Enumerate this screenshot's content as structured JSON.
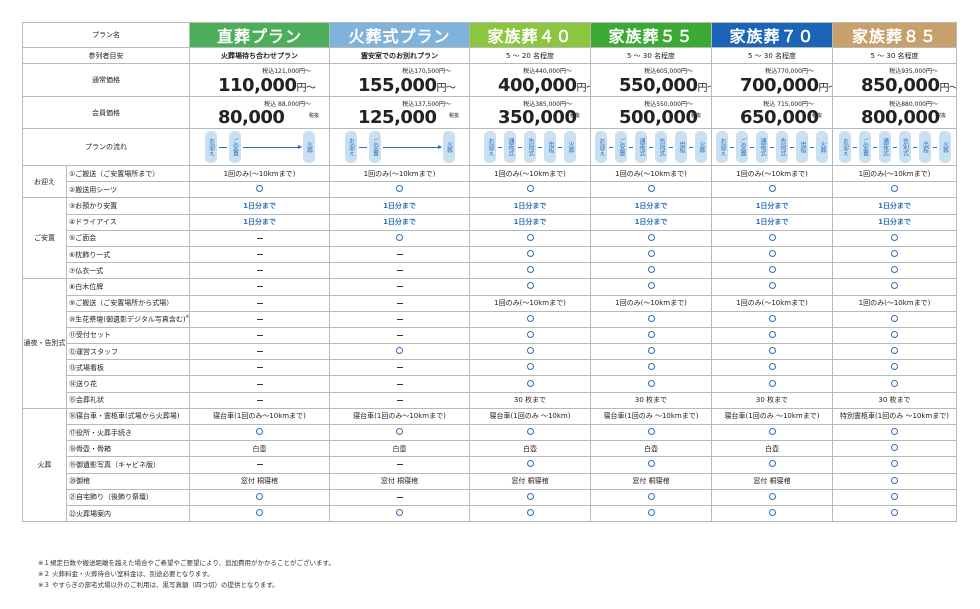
{
  "header": {
    "row_label": "プラン名"
  },
  "plans": [
    {
      "name": "直葬プラン",
      "color": "#4cae5b",
      "attendees": "火葬場待ち合わせプラン",
      "attendees_bold": true,
      "regular": {
        "small": "税込121,000円～",
        "main": "110,000",
        "yen": "円～"
      },
      "member": {
        "small": "税込 88,000円～",
        "main": "80,000",
        "tax": "税抜"
      },
      "flow": [
        "お迎え",
        "ご安置",
        "火葬"
      ]
    },
    {
      "name": "火葬式プラン",
      "color": "#7fb3dc",
      "attendees": "霊安室でのお別れプラン",
      "attendees_bold": true,
      "regular": {
        "small": "税込170,500円～",
        "main": "155,000",
        "yen": "円～"
      },
      "member": {
        "small": "税込137,500円～",
        "main": "125,000",
        "tax": "税抜"
      },
      "flow": [
        "お迎え",
        "ご安置",
        "火葬"
      ]
    },
    {
      "name": "家族葬４０",
      "color": "#8cc63f",
      "attendees": "5 ～ 20 名程度",
      "attendees_bold": false,
      "regular": {
        "small": "税込440,000円～",
        "main": "400,000",
        "yen": "円～"
      },
      "member": {
        "small": "税込385,000円～",
        "main": "350,000",
        "tax": "税抜"
      },
      "flow": [
        "お迎え",
        "通夜式",
        "告別式",
        "出棺",
        "火葬"
      ]
    },
    {
      "name": "家族葬５５",
      "color": "#3aaa35",
      "attendees": "5 ～ 30 名程度",
      "attendees_bold": false,
      "regular": {
        "small": "税込605,000円～",
        "main": "550,000",
        "yen": "円～"
      },
      "member": {
        "small": "税込550,000円～",
        "main": "500,000",
        "tax": "税抜"
      },
      "flow": [
        "お迎え",
        "ご安置",
        "通夜式",
        "告別式",
        "出棺",
        "火葬"
      ]
    },
    {
      "name": "家族葬７０",
      "color": "#1c64b8",
      "attendees": "5 ～ 30 名程度",
      "attendees_bold": false,
      "regular": {
        "small": "税込770,000円～",
        "main": "700,000",
        "yen": "円～"
      },
      "member": {
        "small": "税込 715,000円～",
        "main": "650,000",
        "tax": "税抜"
      },
      "flow": [
        "お迎え",
        "ご安置",
        "通夜式",
        "告別式",
        "出棺",
        "火葬"
      ]
    },
    {
      "name": "家族葬８５",
      "color": "#c8a06c",
      "attendees": "5 ～ 30 名程度",
      "attendees_bold": false,
      "regular": {
        "small": "税込935,000円～",
        "main": "850,000",
        "yen": "円～"
      },
      "member": {
        "small": "税込880,000円～",
        "main": "800,000",
        "tax": "税抜"
      },
      "flow": [
        "お迎え",
        "ご安置",
        "通夜式",
        "告別式",
        "出棺",
        "火葬"
      ]
    }
  ],
  "row_labels": {
    "attendees": "参列者目安",
    "regular": "通常価格",
    "member": "会員価格",
    "flow": "プランの流れ"
  },
  "sections": [
    {
      "category": "お迎え",
      "rows": [
        {
          "item": "①ご搬送（ご安置場所まで）",
          "values": [
            "1回のみ(～10kmまで)",
            "1回のみ(～10kmまで)",
            "1回のみ(～10kmまで)",
            "1回のみ(～10kmまで)",
            "1回のみ(～10kmまで)",
            "1回のみ(～10kmまで)"
          ]
        },
        {
          "item": "②搬送用シーツ",
          "values": [
            "○",
            "○",
            "○",
            "○",
            "○",
            "○"
          ]
        }
      ]
    },
    {
      "category": "ご安置",
      "rows": [
        {
          "item": "③お預かり安置",
          "values": [
            "1日分まで",
            "1日分まで",
            "1日分まで",
            "1日分まで",
            "1日分まで",
            "1日分まで"
          ]
        },
        {
          "item": "④ドライアイス",
          "values": [
            "1日分まで",
            "1日分まで",
            "1日分まで",
            "1日分まで",
            "1日分まで",
            "1日分まで"
          ]
        },
        {
          "item": "⑤ご面会",
          "values": [
            "－",
            "○",
            "○",
            "○",
            "○",
            "○"
          ]
        },
        {
          "item": "⑥枕飾り一式",
          "values": [
            "－",
            "－",
            "○",
            "○",
            "○",
            "○"
          ]
        },
        {
          "item": "⑦仏衣一式",
          "values": [
            "－",
            "－",
            "○",
            "○",
            "○",
            "○"
          ]
        }
      ]
    },
    {
      "category": "通夜・告別式",
      "rows": [
        {
          "item": "⑧白木位牌",
          "values": [
            "－",
            "－",
            "○",
            "○",
            "○",
            "○"
          ]
        },
        {
          "item": "⑨ご搬送（ご安置場所から式場）",
          "values": [
            "－",
            "－",
            "1回のみ(～10kmまで)",
            "1回のみ(～10kmまで)",
            "1回のみ(～10kmまで)",
            "1回のみ(～10kmまで)"
          ]
        },
        {
          "item": "⑩生花祭壇(御遺影デジタル写真含む)",
          "note": "※3",
          "values": [
            "－",
            "－",
            "○",
            "○",
            "○",
            "○"
          ]
        },
        {
          "item": "⑪受付セット",
          "values": [
            "－",
            "－",
            "○",
            "○",
            "○",
            "○"
          ]
        },
        {
          "item": "⑫運営スタッフ",
          "values": [
            "－",
            "○",
            "○",
            "○",
            "○",
            "○"
          ]
        },
        {
          "item": "⑬式場看板",
          "values": [
            "－",
            "－",
            "○",
            "○",
            "○",
            "○"
          ]
        },
        {
          "item": "⑭送り花",
          "values": [
            "－",
            "－",
            "○",
            "○",
            "○",
            "○"
          ]
        },
        {
          "item": "⑮会葬礼状",
          "values": [
            "－",
            "－",
            "30 枚まで",
            "30 枚まで",
            "30 枚まで",
            "30 枚まで"
          ]
        }
      ]
    },
    {
      "category": "火葬",
      "rows": [
        {
          "item": "⑯寝台車・霊柩車(式場から火葬場)",
          "values": [
            "寝台車(1回のみ～10kmまで)",
            "寝台車(1回のみ～10kmまで)",
            "寝台車(1回のみ ～10km)",
            "寝台車(1回のみ ～10kmまで)",
            "寝台車(1回のみ ～10kmまで)",
            "特別霊柩車(1回のみ ～10kmまで)"
          ]
        },
        {
          "item": "⑰役所・火葬手続き",
          "values": [
            "○",
            "○",
            "○",
            "○",
            "○",
            "○"
          ]
        },
        {
          "item": "⑱骨壺・骨箱",
          "values": [
            "白壺",
            "白壺",
            "白壺",
            "白壺",
            "白壺",
            "○"
          ]
        },
        {
          "item": "⑲御遺影写真（キャビネ版）",
          "values": [
            "－",
            "－",
            "○",
            "○",
            "○",
            "○"
          ]
        },
        {
          "item": "⑳御棺",
          "values": [
            "窓付 桐寝棺",
            "窓付 桐寝棺",
            "窓付 桐寝棺",
            "窓付 桐寝棺",
            "窓付 桐寝棺",
            "○"
          ]
        },
        {
          "item": "㉑自宅飾り（後飾り祭壇）",
          "values": [
            "○",
            "－",
            "○",
            "○",
            "○",
            "○"
          ]
        },
        {
          "item": "㉒火葬場案内",
          "values": [
            "○",
            "○",
            "○",
            "○",
            "○",
            "○"
          ]
        }
      ]
    }
  ],
  "notes": [
    "※１規定日数や搬送距離を越えた場合やご希望やご要望により、追加費用がかかることがございます。",
    "※２ 火葬料金・火葬待合い室料金は、別途必要となります。",
    "※３ やすらぎの部宅式場以外のご利用は、黒写真額（四つ切）の提供となります。"
  ]
}
